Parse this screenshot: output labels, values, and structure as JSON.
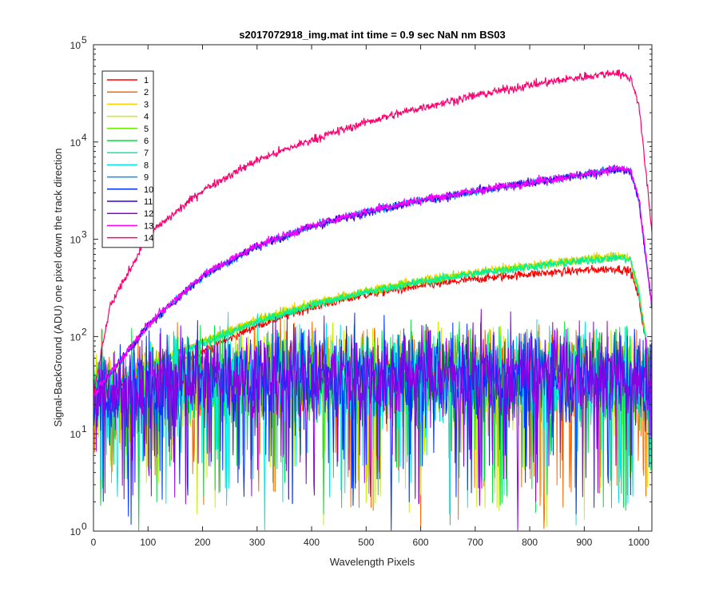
{
  "chart_data": {
    "type": "line",
    "title": "s2017072918_img.mat int time = 0.9 sec  NaN nm BS03",
    "xlabel": "Wavelength Pixels",
    "ylabel": "Signal-BackGround (ADU) one pixel down the track direction",
    "xlim": [
      0,
      1024
    ],
    "ylim": [
      1,
      100000
    ],
    "yscale": "log",
    "x_ticks": [
      0,
      100,
      200,
      300,
      400,
      500,
      600,
      700,
      800,
      900,
      1000
    ],
    "y_ticks": [
      {
        "value": 1,
        "base": "10",
        "exp": "0"
      },
      {
        "value": 10,
        "base": "10",
        "exp": "1"
      },
      {
        "value": 100,
        "base": "10",
        "exp": "2"
      },
      {
        "value": 1000,
        "base": "10",
        "exp": "3"
      },
      {
        "value": 10000,
        "base": "10",
        "exp": "4"
      },
      {
        "value": 100000,
        "base": "10",
        "exp": "5"
      }
    ],
    "grid": false,
    "legend_position": "top-left",
    "series": [
      {
        "name": "1",
        "color": "#ff0000",
        "envelope": [
          [
            0,
            25
          ],
          [
            100,
            40
          ],
          [
            200,
            70
          ],
          [
            300,
            130
          ],
          [
            400,
            200
          ],
          [
            500,
            270
          ],
          [
            600,
            330
          ],
          [
            700,
            390
          ],
          [
            800,
            440
          ],
          [
            900,
            480
          ],
          [
            960,
            500
          ],
          [
            985,
            470
          ],
          [
            1000,
            250
          ],
          [
            1024,
            35
          ]
        ]
      },
      {
        "name": "2",
        "color": "#ff6a00",
        "envelope": [
          [
            0,
            25
          ],
          [
            100,
            30
          ],
          [
            200,
            38
          ],
          [
            300,
            40
          ],
          [
            400,
            40
          ],
          [
            500,
            38
          ],
          [
            600,
            40
          ],
          [
            700,
            40
          ],
          [
            800,
            40
          ],
          [
            900,
            40
          ],
          [
            1000,
            40
          ],
          [
            1024,
            30
          ]
        ]
      },
      {
        "name": "3",
        "color": "#ffd000",
        "envelope": [
          [
            0,
            25
          ],
          [
            100,
            50
          ],
          [
            200,
            90
          ],
          [
            300,
            150
          ],
          [
            400,
            220
          ],
          [
            500,
            300
          ],
          [
            600,
            380
          ],
          [
            700,
            460
          ],
          [
            800,
            540
          ],
          [
            900,
            630
          ],
          [
            960,
            680
          ],
          [
            985,
            640
          ],
          [
            1000,
            300
          ],
          [
            1024,
            35
          ]
        ]
      },
      {
        "name": "4",
        "color": "#c8f000",
        "envelope": [
          [
            0,
            25
          ],
          [
            100,
            30
          ],
          [
            200,
            38
          ],
          [
            300,
            40
          ],
          [
            400,
            40
          ],
          [
            500,
            38
          ],
          [
            600,
            40
          ],
          [
            700,
            40
          ],
          [
            800,
            40
          ],
          [
            900,
            40
          ],
          [
            1000,
            40
          ],
          [
            1024,
            30
          ]
        ]
      },
      {
        "name": "5",
        "color": "#66f000",
        "envelope": [
          [
            0,
            25
          ],
          [
            100,
            50
          ],
          [
            200,
            88
          ],
          [
            300,
            145
          ],
          [
            400,
            215
          ],
          [
            500,
            290
          ],
          [
            600,
            370
          ],
          [
            700,
            450
          ],
          [
            800,
            530
          ],
          [
            900,
            610
          ],
          [
            960,
            660
          ],
          [
            985,
            620
          ],
          [
            1000,
            290
          ],
          [
            1024,
            35
          ]
        ]
      },
      {
        "name": "6",
        "color": "#00e040",
        "envelope": [
          [
            0,
            25
          ],
          [
            100,
            30
          ],
          [
            200,
            38
          ],
          [
            300,
            40
          ],
          [
            400,
            40
          ],
          [
            500,
            38
          ],
          [
            600,
            40
          ],
          [
            700,
            40
          ],
          [
            800,
            40
          ],
          [
            900,
            40
          ],
          [
            1000,
            40
          ],
          [
            1024,
            30
          ]
        ]
      },
      {
        "name": "7",
        "color": "#00f0a0",
        "envelope": [
          [
            0,
            25
          ],
          [
            100,
            48
          ],
          [
            200,
            85
          ],
          [
            300,
            140
          ],
          [
            400,
            210
          ],
          [
            500,
            285
          ],
          [
            600,
            365
          ],
          [
            700,
            445
          ],
          [
            800,
            520
          ],
          [
            900,
            600
          ],
          [
            960,
            650
          ],
          [
            985,
            610
          ],
          [
            1000,
            285
          ],
          [
            1024,
            35
          ]
        ]
      },
      {
        "name": "8",
        "color": "#00e8e8",
        "envelope": [
          [
            0,
            25
          ],
          [
            100,
            30
          ],
          [
            200,
            38
          ],
          [
            300,
            40
          ],
          [
            400,
            40
          ],
          [
            500,
            38
          ],
          [
            600,
            40
          ],
          [
            700,
            40
          ],
          [
            800,
            40
          ],
          [
            900,
            40
          ],
          [
            1000,
            40
          ],
          [
            1024,
            30
          ]
        ]
      },
      {
        "name": "9",
        "color": "#0090ff",
        "envelope": [
          [
            0,
            25
          ],
          [
            100,
            130
          ],
          [
            200,
            420
          ],
          [
            300,
            850
          ],
          [
            400,
            1350
          ],
          [
            500,
            1900
          ],
          [
            600,
            2500
          ],
          [
            700,
            3100
          ],
          [
            800,
            3800
          ],
          [
            900,
            4600
          ],
          [
            960,
            5300
          ],
          [
            985,
            5000
          ],
          [
            1000,
            2500
          ],
          [
            1024,
            200
          ]
        ]
      },
      {
        "name": "10",
        "color": "#0030ff",
        "envelope": [
          [
            0,
            25
          ],
          [
            100,
            30
          ],
          [
            200,
            38
          ],
          [
            300,
            40
          ],
          [
            400,
            40
          ],
          [
            500,
            38
          ],
          [
            600,
            40
          ],
          [
            700,
            40
          ],
          [
            800,
            40
          ],
          [
            900,
            40
          ],
          [
            1000,
            40
          ],
          [
            1024,
            30
          ]
        ]
      },
      {
        "name": "11",
        "color": "#3800e0",
        "envelope": [
          [
            0,
            25
          ],
          [
            100,
            130
          ],
          [
            200,
            420
          ],
          [
            300,
            850
          ],
          [
            400,
            1350
          ],
          [
            500,
            1900
          ],
          [
            600,
            2500
          ],
          [
            700,
            3100
          ],
          [
            800,
            3800
          ],
          [
            900,
            4600
          ],
          [
            960,
            5300
          ],
          [
            985,
            5000
          ],
          [
            1000,
            2500
          ],
          [
            1024,
            200
          ]
        ]
      },
      {
        "name": "12",
        "color": "#9000e0",
        "envelope": [
          [
            0,
            25
          ],
          [
            100,
            32
          ],
          [
            200,
            40
          ],
          [
            300,
            42
          ],
          [
            400,
            42
          ],
          [
            500,
            40
          ],
          [
            600,
            42
          ],
          [
            700,
            42
          ],
          [
            800,
            42
          ],
          [
            900,
            42
          ],
          [
            1000,
            42
          ],
          [
            1024,
            32
          ]
        ]
      },
      {
        "name": "13",
        "color": "#ff00ff",
        "envelope": [
          [
            0,
            25
          ],
          [
            100,
            135
          ],
          [
            200,
            430
          ],
          [
            300,
            870
          ],
          [
            400,
            1380
          ],
          [
            500,
            1950
          ],
          [
            600,
            2550
          ],
          [
            700,
            3150
          ],
          [
            800,
            3850
          ],
          [
            900,
            4650
          ],
          [
            960,
            5400
          ],
          [
            985,
            5100
          ],
          [
            1000,
            2600
          ],
          [
            1024,
            210
          ]
        ]
      },
      {
        "name": "14",
        "color": "#ff0070",
        "envelope": [
          [
            0,
            25
          ],
          [
            30,
            200
          ],
          [
            100,
            1100
          ],
          [
            200,
            3200
          ],
          [
            300,
            6500
          ],
          [
            400,
            10500
          ],
          [
            500,
            16000
          ],
          [
            600,
            22500
          ],
          [
            700,
            30000
          ],
          [
            800,
            38500
          ],
          [
            900,
            47000
          ],
          [
            960,
            52000
          ],
          [
            985,
            45000
          ],
          [
            1000,
            25000
          ],
          [
            1024,
            1200
          ]
        ]
      }
    ]
  }
}
